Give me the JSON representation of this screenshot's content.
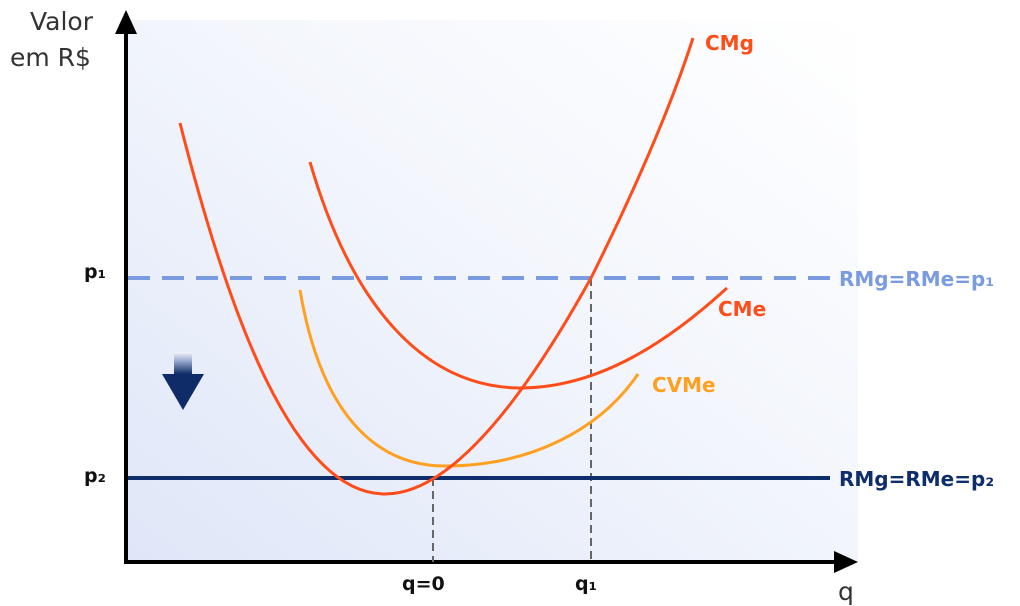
{
  "y_axis_title": [
    "Valor",
    "em R$"
  ],
  "x_axis_title": "q",
  "y_ticks": {
    "p1": "p₁",
    "p2": "p₂"
  },
  "x_ticks": {
    "q0": "q=0",
    "q1": "q₁"
  },
  "curves": {
    "cmg": {
      "label": "CMg",
      "color": "#ff4d1a"
    },
    "cme": {
      "label": "CMe",
      "color": "#ff4d1a"
    },
    "cvme": {
      "label": "CVMe",
      "color": "#ffa020"
    }
  },
  "revenue_lines": {
    "high": {
      "label": "RMg=RMe=p₁",
      "color": "#7b9be0",
      "style": "dashed"
    },
    "low": {
      "label": "RMg=RMe=p₂",
      "color": "#0d2d6b",
      "style": "solid"
    }
  },
  "arrow": {
    "direction": "down",
    "meaning": "price falls from p₁ to p₂",
    "color": "#1b3a7a"
  },
  "colors": {
    "background_gradient_from": "#dfe6f8",
    "background_gradient_to": "#ffffff",
    "axis": "#000000",
    "guide": "#666666"
  }
}
